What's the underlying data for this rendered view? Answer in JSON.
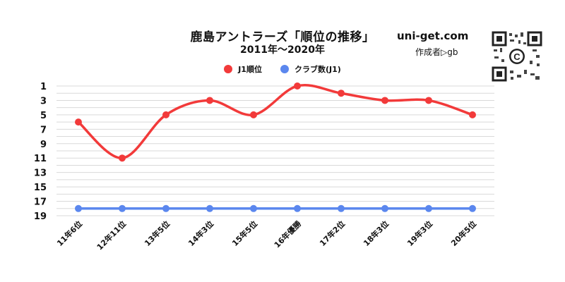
{
  "header": {
    "title": "鹿島アントラーズ「順位の推移」",
    "subtitle": "2011年～2020年",
    "site": "uni-get.com",
    "author": "作成者▷gb",
    "qr_icon": "qr-code-icon"
  },
  "colors": {
    "rank": "#f23a3a",
    "clubs": "#5b87ee",
    "grid": "#d9d9d9"
  },
  "chart_data": {
    "type": "line",
    "title": "鹿島アントラーズ「順位の推移」",
    "subtitle": "2011年～2020年",
    "categories": [
      "11年6位",
      "12年11位",
      "13年5位",
      "14年3位",
      "15年5位",
      "16年優勝",
      "17年2位",
      "18年3位",
      "19年3位",
      "20年5位"
    ],
    "series": [
      {
        "name": "J1順位",
        "values": [
          6,
          11,
          5,
          3,
          5,
          1,
          2,
          3,
          3,
          5
        ],
        "color": "#f23a3a"
      },
      {
        "name": "クラブ数(J1)",
        "values": [
          18,
          18,
          18,
          18,
          18,
          18,
          18,
          18,
          18,
          18
        ],
        "color": "#5b87ee"
      }
    ],
    "ylim": [
      1,
      19
    ],
    "y_inverted": true,
    "yticks": [
      "1",
      "3",
      "5",
      "7",
      "9",
      "11",
      "13",
      "15",
      "17",
      "19"
    ],
    "grid": true,
    "legend": "top-center"
  }
}
